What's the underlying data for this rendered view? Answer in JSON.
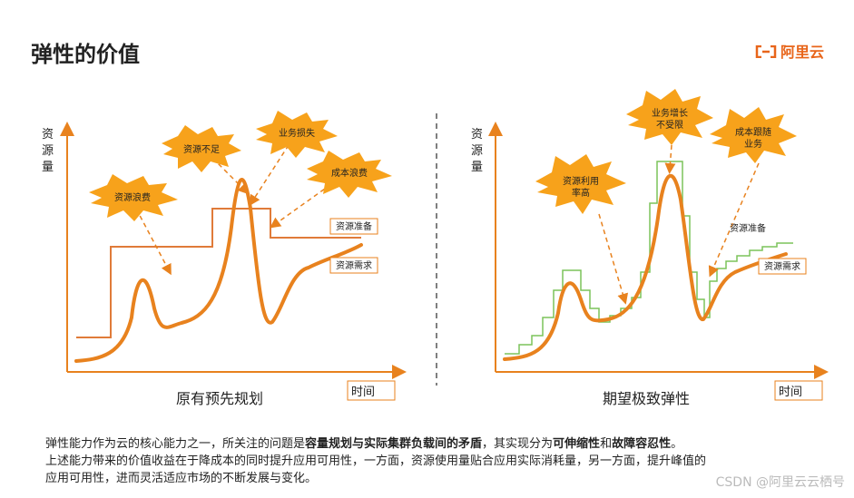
{
  "page": {
    "title": "弹性的价值",
    "logo_text": "阿里云",
    "watermark": "CSDN @阿里云云栖号"
  },
  "left_chart": {
    "ylabel": [
      "资",
      "源",
      "量"
    ],
    "xlabel": "时间",
    "caption": "原有预先规划",
    "bursts": [
      "资源不足",
      "业务损失",
      "资源浪费",
      "成本浪费"
    ],
    "legend_capacity": "资源准备",
    "legend_demand": "资源需求"
  },
  "right_chart": {
    "ylabel": [
      "资",
      "源",
      "量"
    ],
    "xlabel": "时间",
    "caption": "期望极致弹性",
    "bursts": [
      [
        "业务增长",
        "不受限"
      ],
      [
        "成本跟随",
        "业务"
      ],
      [
        "资源利用",
        "率高"
      ]
    ],
    "legend_capacity": "资源准备",
    "legend_demand": "资源需求"
  },
  "description": {
    "p1_a": "弹性能力作为云的核心能力之一，所关注的问题是",
    "p1_b": "容量规划与实际集群负载间的矛盾",
    "p1_c": "，其实现分为",
    "p1_d": "可伸缩性",
    "p1_e": "和",
    "p1_f": "故障容忍性",
    "p1_g": "。",
    "p2": "上述能力带来的价值收益在于降成本的同时提升应用可用性，一方面，资源使用量贴合应用实际消耗量，另一方面，提升峰值的",
    "p3": "应用可用性，进而灵活适应市场的不断发展与变化。"
  },
  "colors": {
    "accent": "#e8821e",
    "step_line": "#e07b39",
    "green_step": "#7cc35a",
    "burst_fill": "#f7a21b"
  }
}
